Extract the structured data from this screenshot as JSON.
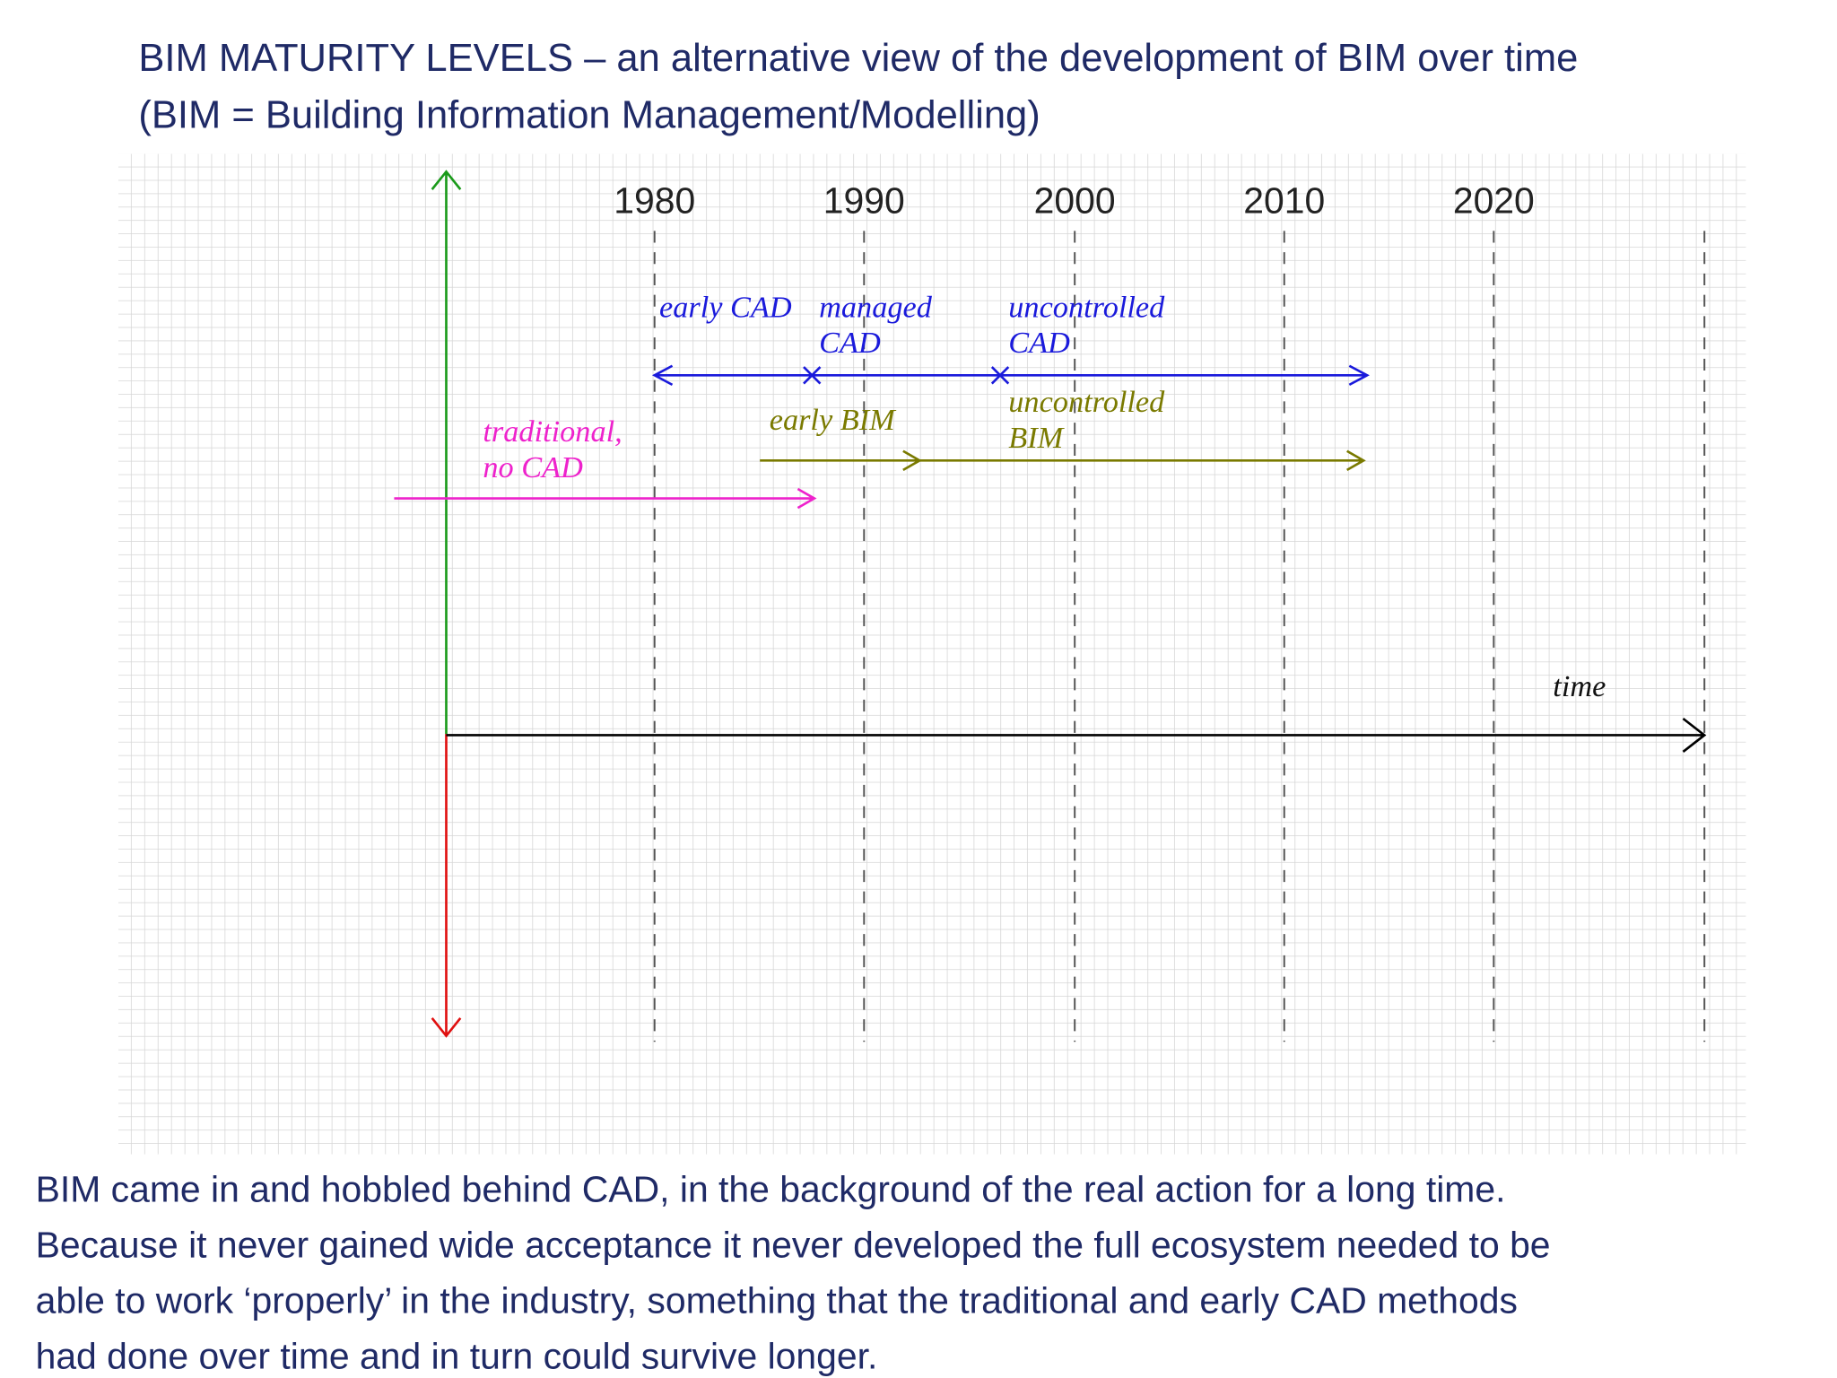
{
  "title": [
    "BIM MATURITY LEVELS – an alternative view of the development of BIM over time",
    "(BIM = Building Information Management/Modelling)"
  ],
  "diagram": {
    "years": [
      "1980",
      "1990",
      "2000",
      "2010",
      "2020"
    ],
    "labels": {
      "early_cad": "early CAD",
      "managed_cad": [
        "managed",
        "CAD"
      ],
      "uncontrolled_cad": [
        "uncontrolled",
        "CAD"
      ],
      "early_bim": "early BIM",
      "uncontrolled_bim": [
        "uncontrolled",
        "BIM"
      ],
      "traditional": [
        "traditional,",
        "no CAD"
      ]
    },
    "axis_label": "time"
  },
  "caption": [
    "BIM came in and hobbled behind CAD, in the background of the real action for a long time.",
    "Because it never gained wide acceptance it never developed the full ecosystem needed to be",
    "able to work ‘properly’ in the industry, something that the traditional and early CAD methods",
    "had done over time and in turn could survive longer."
  ]
}
